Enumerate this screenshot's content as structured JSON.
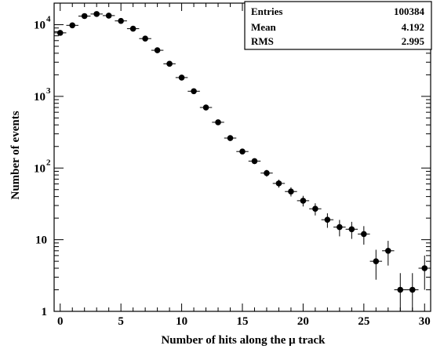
{
  "chart_data": {
    "type": "scatter",
    "title": "",
    "xlabel": "Number of hits along the μ track",
    "ylabel": "Number of events",
    "xlim": [
      -0.5,
      30.5
    ],
    "ylim": [
      1,
      20000
    ],
    "y_scale": "log",
    "grid": false,
    "error_bars": true,
    "x_ticks": [
      0,
      5,
      10,
      15,
      20,
      25,
      30
    ],
    "x_tick_labels": [
      "0",
      "5",
      "10",
      "15",
      "20",
      "25",
      "30"
    ],
    "y_ticks": [
      1,
      10,
      100,
      1000,
      10000
    ],
    "y_tick_labels": [
      {
        "base": "1",
        "exp": ""
      },
      {
        "base": "10",
        "exp": ""
      },
      {
        "base": "10",
        "exp": "2"
      },
      {
        "base": "10",
        "exp": "3"
      },
      {
        "base": "10",
        "exp": "4"
      }
    ],
    "x": [
      0,
      1,
      2,
      3,
      4,
      5,
      6,
      7,
      8,
      9,
      10,
      11,
      12,
      13,
      14,
      15,
      16,
      17,
      18,
      19,
      20,
      21,
      22,
      23,
      24,
      25,
      26,
      27,
      28,
      29,
      30
    ],
    "y": [
      7700,
      9800,
      13200,
      14100,
      13400,
      11300,
      8800,
      6400,
      4400,
      2850,
      1830,
      1180,
      700,
      435,
      262,
      170,
      125,
      85,
      61,
      47,
      35,
      27,
      19,
      15,
      14,
      12,
      5,
      7,
      2,
      2,
      4
    ],
    "stats": [
      {
        "name": "Entries",
        "value": "100384"
      },
      {
        "name": "Mean",
        "value": "4.192"
      },
      {
        "name": "RMS",
        "value": "2.995"
      }
    ]
  }
}
